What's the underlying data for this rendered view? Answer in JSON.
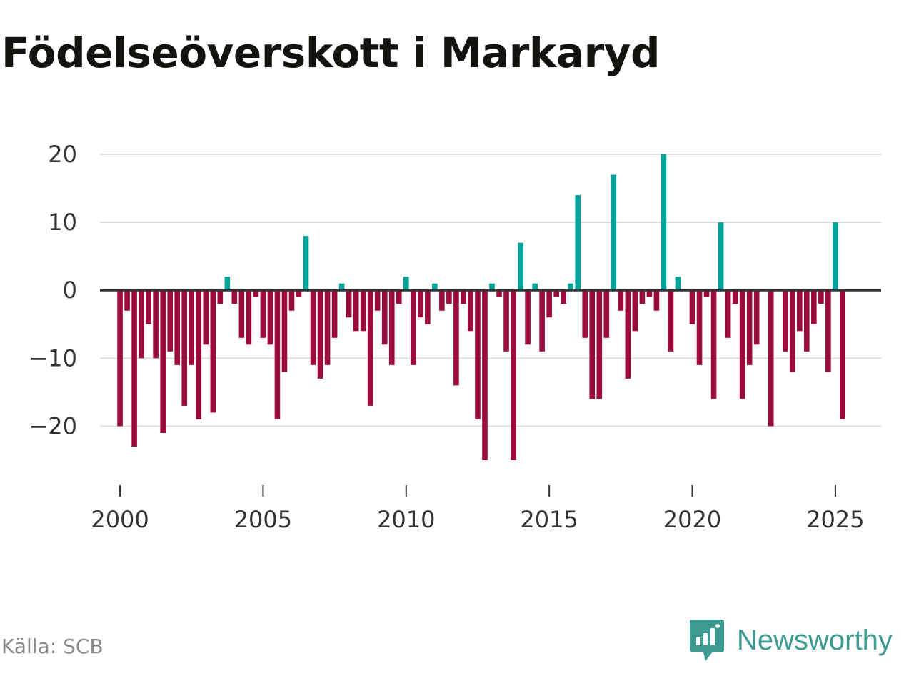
{
  "title": "Födelseöverskott i Markaryd",
  "source": "Källa: SCB",
  "brand": {
    "name": "Newsworthy",
    "icon": "newsworthy-logo-icon"
  },
  "colors": {
    "positive": "#00a29a",
    "negative": "#9b0b3e",
    "grid": "#dddddd",
    "zero_line": "#333333",
    "axis_text": "#333333",
    "source_text": "#8a8a8a",
    "brand": "#3d9b92"
  },
  "chart_data": {
    "type": "bar",
    "title": "Födelseöverskott i Markaryd",
    "xlabel": "",
    "ylabel": "",
    "x_start": 2000.0,
    "x_step": 0.25,
    "xlim": [
      1999.3,
      2026.6
    ],
    "ylim": [
      -25,
      20
    ],
    "yticks": [
      -20,
      -10,
      0,
      10,
      20
    ],
    "ytick_labels": [
      "−20",
      "−10",
      "0",
      "10",
      "20"
    ],
    "xticks": [
      2000,
      2005,
      2010,
      2015,
      2020,
      2025
    ],
    "xtick_labels": [
      "2000",
      "2005",
      "2010",
      "2015",
      "2020",
      "2025"
    ],
    "grid": true,
    "values": [
      -20,
      -3,
      -23,
      -10,
      -5,
      -10,
      -21,
      -9,
      -11,
      -17,
      -11,
      -19,
      -8,
      -18,
      -2,
      2,
      -2,
      -7,
      -8,
      -1,
      -7,
      -8,
      -19,
      -12,
      -3,
      -1,
      8,
      -11,
      -13,
      -11,
      -7,
      1,
      -4,
      -6,
      -6,
      -17,
      -3,
      -8,
      -11,
      -2,
      2,
      -11,
      -4,
      -5,
      1,
      -3,
      -2,
      -14,
      -2,
      -6,
      -19,
      -25,
      1,
      -1,
      -9,
      -25,
      7,
      -8,
      1,
      -9,
      -4,
      -1,
      -2,
      1,
      14,
      -7,
      -16,
      -16,
      -7,
      17,
      -3,
      -13,
      -6,
      -2,
      -1,
      -3,
      20,
      -9,
      2,
      0,
      -5,
      -11,
      -1,
      -16,
      10,
      -7,
      -2,
      -16,
      -11,
      -8,
      0,
      -20,
      0,
      -9,
      -12,
      -6,
      -9,
      -5,
      -2,
      -12,
      10,
      -19
    ]
  }
}
